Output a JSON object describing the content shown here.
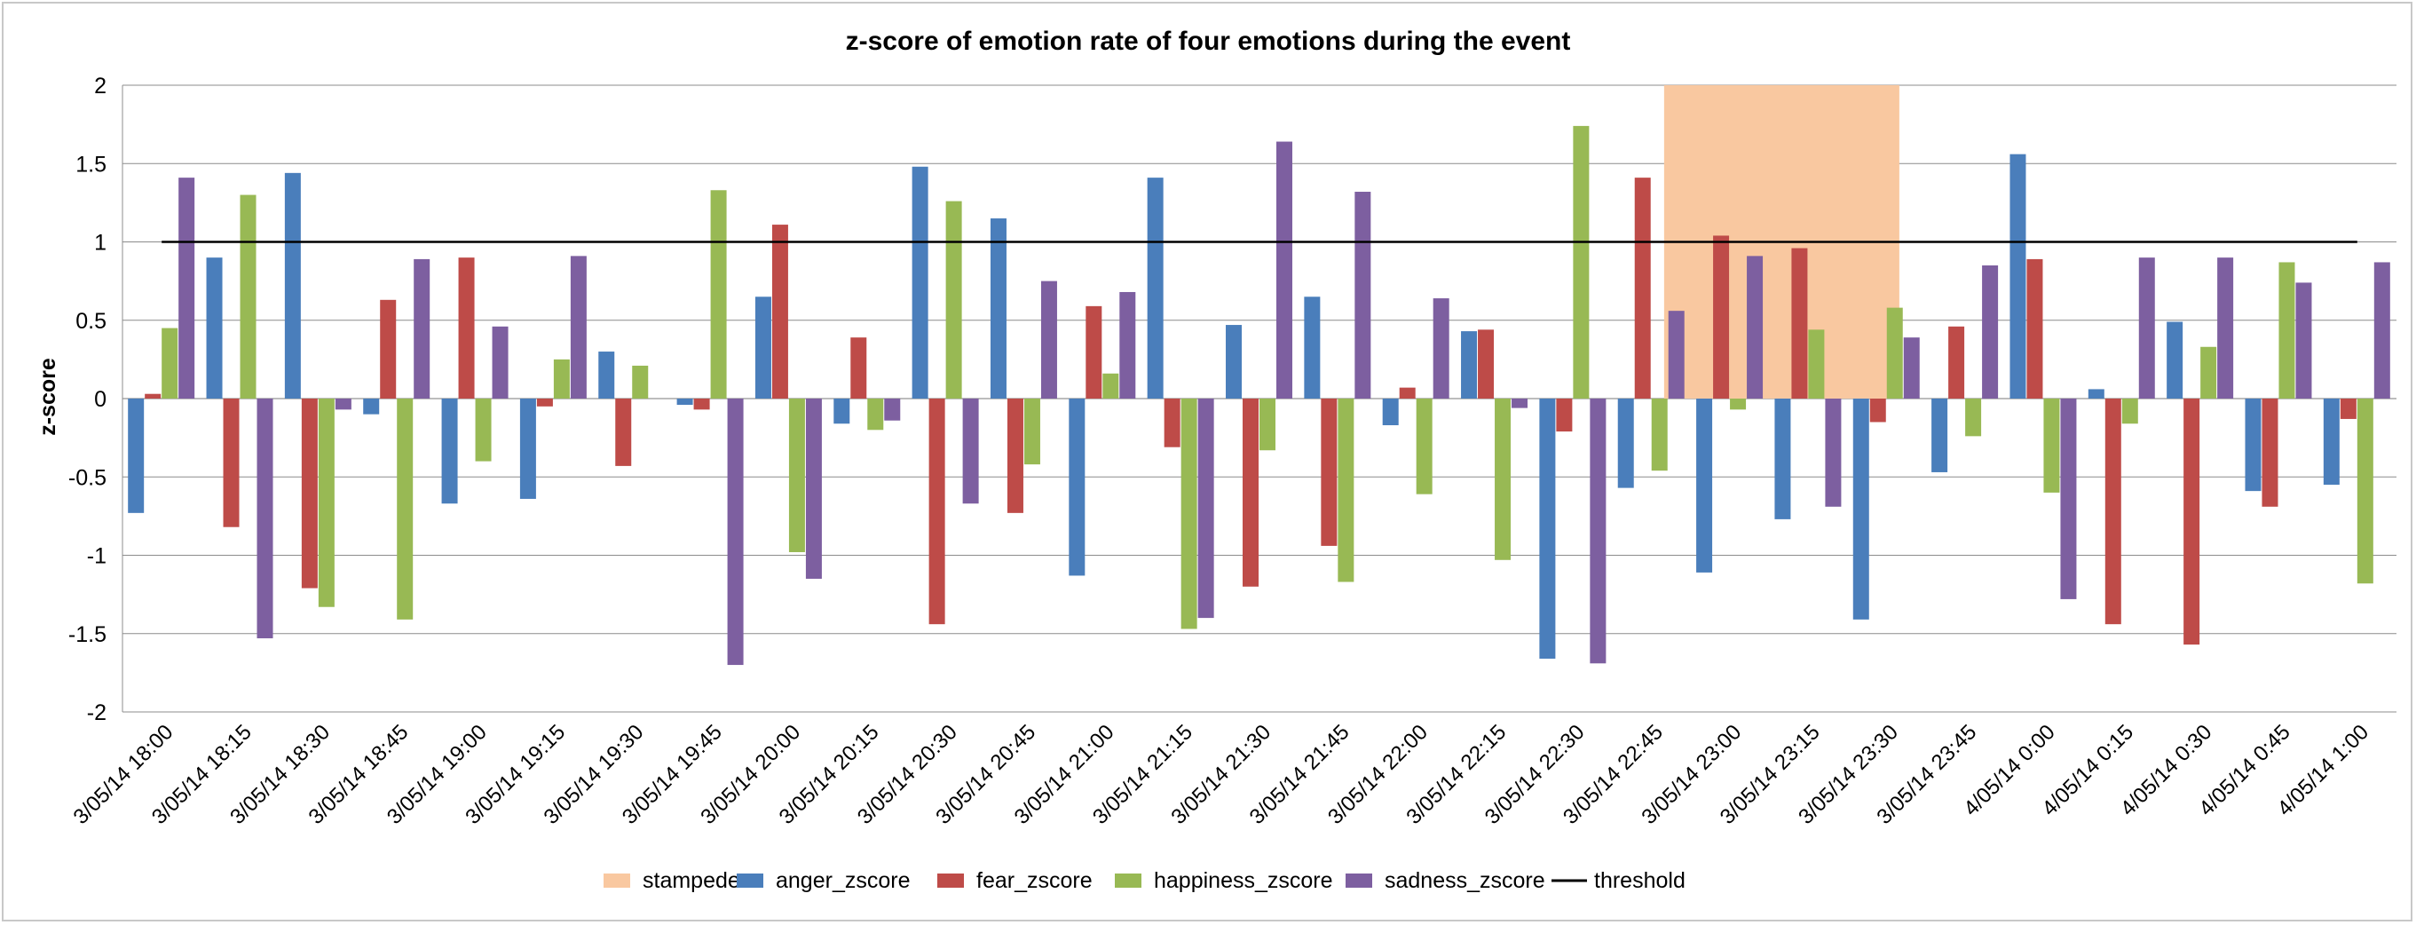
{
  "chart_data": {
    "type": "bar",
    "title": "z-score of emotion rate of four emotions during the event",
    "xlabel": "",
    "ylabel": "z-score",
    "ylim": [
      -2,
      2
    ],
    "yticks": [
      2,
      1.5,
      1,
      0.5,
      0,
      -0.5,
      -1,
      -1.5,
      -2
    ],
    "ytick_labels": [
      "2",
      "1.5",
      "1",
      "0.5",
      "0",
      "-0.5",
      "-1",
      "-1.5",
      "-2"
    ],
    "grid": true,
    "legend_position": "bottom",
    "categories": [
      "3/05/14 18:00",
      "3/05/14 18:15",
      "3/05/14 18:30",
      "3/05/14 18:45",
      "3/05/14 19:00",
      "3/05/14 19:15",
      "3/05/14 19:30",
      "3/05/14 19:45",
      "3/05/14 20:00",
      "3/05/14 20:15",
      "3/05/14 20:30",
      "3/05/14 20:45",
      "3/05/14 21:00",
      "3/05/14 21:15",
      "3/05/14 21:30",
      "3/05/14 21:45",
      "3/05/14 22:00",
      "3/05/14 22:15",
      "3/05/14 22:30",
      "3/05/14 22:45",
      "3/05/14 23:00",
      "3/05/14 23:15",
      "3/05/14 23:30",
      "3/05/14 23:45",
      "4/05/14 0:00",
      "4/05/14 0:15",
      "4/05/14 0:30",
      "4/05/14 0:45",
      "4/05/14 1:00"
    ],
    "series": [
      {
        "name": "anger_zscore",
        "color": "#4a7ebb",
        "values": [
          -0.73,
          0.9,
          1.44,
          -0.1,
          -0.67,
          -0.64,
          0.3,
          -0.04,
          0.65,
          -0.16,
          1.48,
          1.15,
          -1.13,
          1.41,
          0.47,
          0.65,
          -0.17,
          0.43,
          -1.66,
          -0.57,
          -1.11,
          -0.77,
          -1.41,
          -0.47,
          1.56,
          0.06,
          0.49,
          -0.59,
          -0.55
        ]
      },
      {
        "name": "fear_zscore",
        "color": "#be4b48",
        "values": [
          0.03,
          -0.82,
          -1.21,
          0.63,
          0.9,
          -0.05,
          -0.43,
          -0.07,
          1.11,
          0.39,
          -1.44,
          -0.73,
          0.59,
          -0.31,
          -1.2,
          -0.94,
          0.07,
          0.44,
          -0.21,
          1.41,
          1.04,
          0.96,
          -0.15,
          0.46,
          0.89,
          -1.44,
          -1.57,
          -0.69,
          -0.13
        ]
      },
      {
        "name": "happiness_zscore",
        "color": "#98b954",
        "values": [
          0.45,
          1.3,
          -1.33,
          -1.41,
          -0.4,
          0.25,
          0.21,
          1.33,
          -0.98,
          -0.2,
          1.26,
          -0.42,
          0.16,
          -1.47,
          -0.33,
          -1.17,
          -0.61,
          -1.03,
          1.74,
          -0.46,
          -0.07,
          0.44,
          0.58,
          -0.24,
          -0.6,
          -0.16,
          0.33,
          0.87,
          -1.18
        ]
      },
      {
        "name": "sadness_zscore",
        "color": "#7d5fa0",
        "values": [
          1.41,
          -1.53,
          -0.07,
          0.89,
          0.46,
          0.91,
          null,
          -1.7,
          -1.15,
          -0.14,
          -0.67,
          0.75,
          0.68,
          -1.4,
          1.64,
          1.32,
          0.64,
          -0.06,
          -1.69,
          0.56,
          0.91,
          -0.69,
          0.39,
          0.85,
          -1.28,
          0.9,
          0.9,
          0.74,
          0.87
        ]
      }
    ],
    "threshold": {
      "name": "threshold",
      "value": 1,
      "color": "#000000"
    },
    "stampede": {
      "name": "stampede",
      "color": "#f9c8a0",
      "start_category": "3/05/14 22:45",
      "end_category": "3/05/14 23:30",
      "ymin": 0,
      "ymax": 2
    },
    "legend": [
      {
        "label": "stampede",
        "kind": "area",
        "color": "#f9c8a0"
      },
      {
        "label": "anger_zscore",
        "kind": "bar",
        "color": "#4a7ebb"
      },
      {
        "label": "fear_zscore",
        "kind": "bar",
        "color": "#be4b48"
      },
      {
        "label": "happiness_zscore",
        "kind": "bar",
        "color": "#98b954"
      },
      {
        "label": "sadness_zscore",
        "kind": "bar",
        "color": "#7d5fa0"
      },
      {
        "label": "threshold",
        "kind": "line",
        "color": "#000000"
      }
    ]
  }
}
